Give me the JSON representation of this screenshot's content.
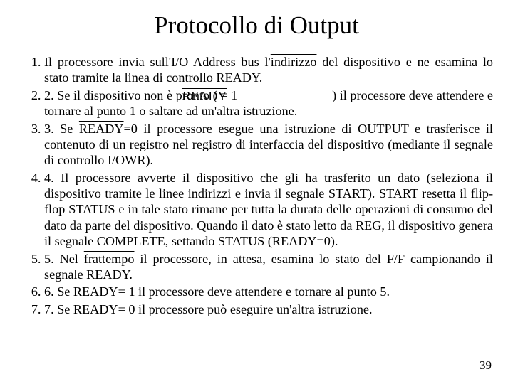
{
  "title": "Protocollo di Output",
  "items": [
    {
      "pre": "Il processore invia sull'I/O Address bus l'",
      "ol1_word": "indirizzo",
      "mid1": " del dispositivo e ne esamina lo stato tramite la ",
      "ol2_word": "linea di controllo",
      "mid2": " ",
      "ready1": "READY",
      "post": "."
    },
    {
      "pre": "2. Se il dispositivo non è pro",
      "overlay_under": "nto (",
      "overlay_over": "READY",
      "eq": " = 1",
      "spacer": "                             ",
      "close": ") il processore deve attendere e tornare al punto 1 o saltare ad un'altra istruzione."
    },
    {
      "pre": "3. Se ",
      "ready": "READY",
      "eq": "=0 il processore esegue una istruzione di OUTPUT e trasferisce il contenuto di un registro nel registro di interfaccia del dispositivo (mediante il segnale di controllo I/OWR)."
    },
    {
      "text": "4. Il processore avverte il dispositivo che gli ha trasferito un dato (seleziona il dispositivo tramite le linee indirizzi e invia il segnale START). START resetta il flip-flop STATUS e in tale stato rimane per tutta la durata delle operazioni di consumo del dato da parte del dispositivo. Quando il ",
      "ol_word": "dato è",
      "text2": " stato letto da REG, il dispositivo genera il segnale COMPLETE, settando STATUS (READY=0)."
    },
    {
      "pre": "5. Nel ",
      "ol_word": "frattempo",
      "post": " il processore, in attesa, esamina lo stato del F/F campionando il segnale READY."
    },
    {
      "pre": "6. ",
      "ol_word": "Se READY",
      "post": "= 1 il processore deve attendere e tornare al punto 5."
    },
    {
      "pre": "7. ",
      "ol_word": "Se READY",
      "post": "= 0 il processore può eseguire un'altra istruzione."
    }
  ],
  "page_number": "39"
}
